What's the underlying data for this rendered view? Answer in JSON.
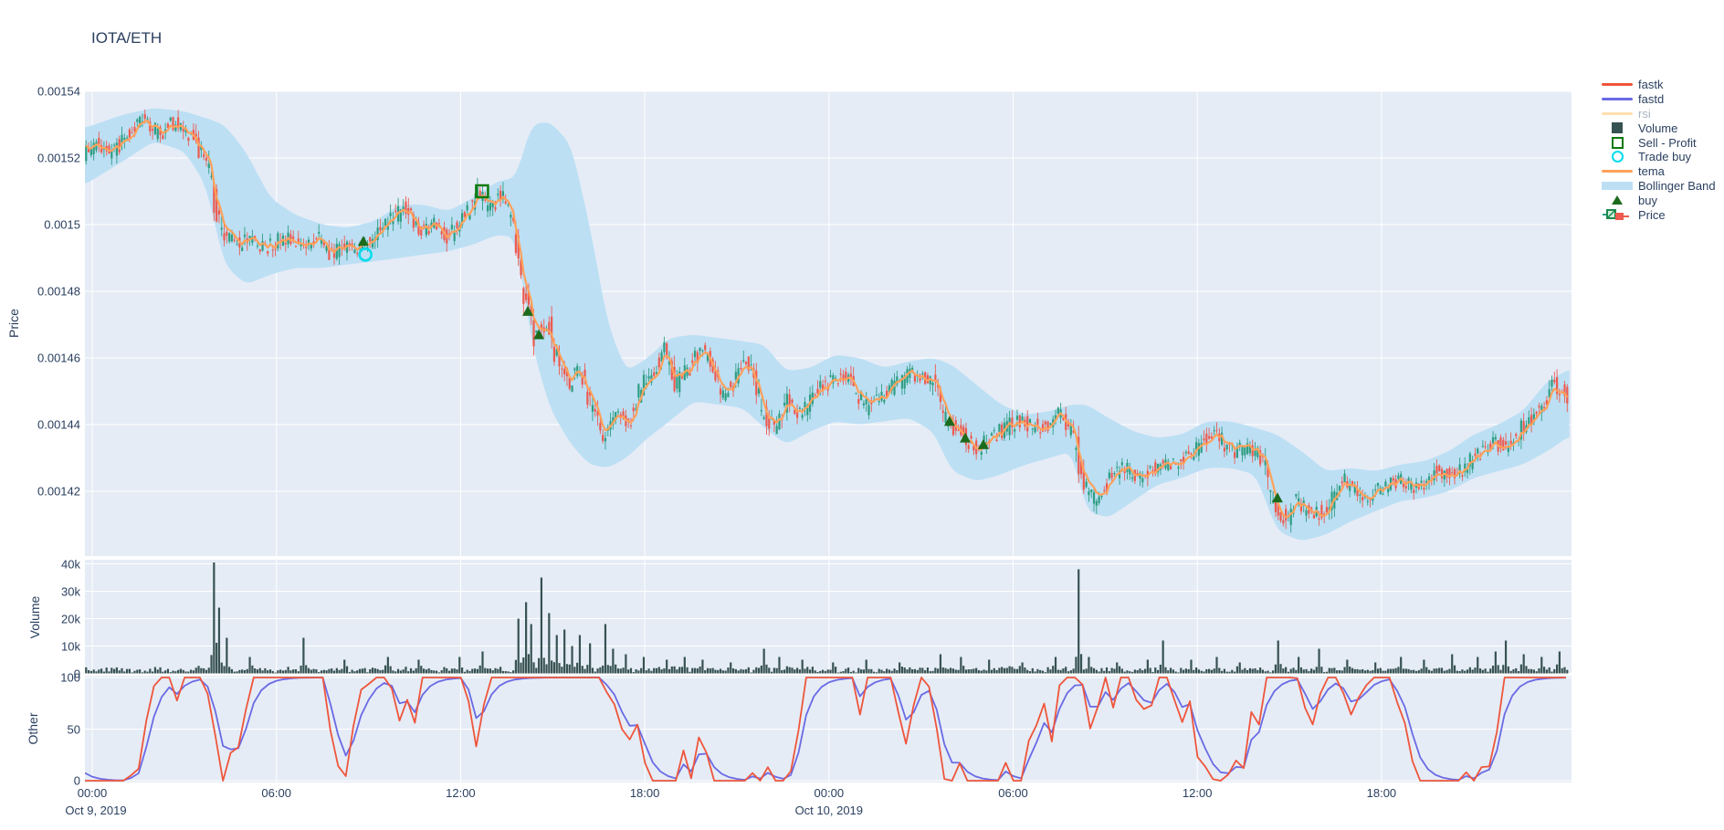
{
  "title": "IOTA/ETH",
  "legend": {
    "items": [
      {
        "id": "fastk",
        "label": "fastk",
        "swatch": "line",
        "color": "#EF553B",
        "muted": false
      },
      {
        "id": "fastd",
        "label": "fastd",
        "swatch": "line",
        "color": "#6A6AE4",
        "muted": false
      },
      {
        "id": "rsi",
        "label": "rsi",
        "swatch": "line",
        "color": "#FFDFB0",
        "muted": true
      },
      {
        "id": "volume",
        "label": "Volume",
        "swatch": "square",
        "color": "#375252",
        "muted": false
      },
      {
        "id": "sell-profit",
        "label": "Sell - Profit",
        "swatch": "square-open",
        "color": "#0B7A0B",
        "muted": false
      },
      {
        "id": "trade-buy",
        "label": "Trade buy",
        "swatch": "circle-open",
        "color": "#00DCEC",
        "muted": false
      },
      {
        "id": "tema",
        "label": "tema",
        "swatch": "line",
        "color": "#FFA15A",
        "muted": false
      },
      {
        "id": "bollinger",
        "label": "Bollinger Band",
        "swatch": "band",
        "color": "#BCDFF4",
        "muted": false
      },
      {
        "id": "buy",
        "label": "buy",
        "swatch": "triangle",
        "color": "#1C6B1C",
        "muted": false
      },
      {
        "id": "price",
        "label": "Price",
        "swatch": "candle",
        "color": "#2F9E82",
        "muted": false
      }
    ]
  },
  "axes": {
    "price": {
      "title": "Price",
      "ticks": [
        {
          "label": "0.00154",
          "value": 0.00154
        },
        {
          "label": "0.00152",
          "value": 0.00152
        },
        {
          "label": "0.0015",
          "value": 0.0015
        },
        {
          "label": "0.00148",
          "value": 0.00148
        },
        {
          "label": "0.00146",
          "value": 0.00146
        },
        {
          "label": "0.00144",
          "value": 0.00144
        },
        {
          "label": "0.00142",
          "value": 0.00142
        }
      ]
    },
    "volume": {
      "title": "Volume",
      "ticks": [
        {
          "label": "40k",
          "value": 40
        },
        {
          "label": "30k",
          "value": 30
        },
        {
          "label": "20k",
          "value": 20
        },
        {
          "label": "10k",
          "value": 10
        },
        {
          "label": "0",
          "value": 0
        }
      ]
    },
    "other": {
      "title": "Other",
      "ticks": [
        {
          "label": "100",
          "value": 100
        },
        {
          "label": "50",
          "value": 50
        },
        {
          "label": "0",
          "value": 0
        }
      ]
    },
    "x": {
      "ticks": [
        {
          "label": "00:00",
          "hour": 0
        },
        {
          "label": "06:00",
          "hour": 6
        },
        {
          "label": "12:00",
          "hour": 12
        },
        {
          "label": "18:00",
          "hour": 18
        },
        {
          "label": "00:00",
          "hour": 24
        },
        {
          "label": "06:00",
          "hour": 30
        },
        {
          "label": "12:00",
          "hour": 36
        },
        {
          "label": "18:00",
          "hour": 42
        }
      ],
      "dates": [
        {
          "label": "Oct 9, 2019",
          "hour": 0
        },
        {
          "label": "Oct 10, 2019",
          "hour": 24
        }
      ]
    }
  },
  "chart_data": {
    "type": "candlestick",
    "title": "IOTA/ETH",
    "x_range_hours": [
      -0.24,
      48.19
    ],
    "panels": [
      {
        "name": "price",
        "ylabel": "Price",
        "ylim": [
          0.0014005,
          0.00154
        ],
        "grid": true
      },
      {
        "name": "volume",
        "ylabel": "Volume",
        "ylim": [
          0,
          41500
        ],
        "grid": true
      },
      {
        "name": "other",
        "ylabel": "Other",
        "ylim": [
          0,
          100
        ],
        "grid": true,
        "series": [
          "fastk",
          "fastd"
        ]
      }
    ],
    "legend_position": "right",
    "hidden_series": [
      "rsi"
    ],
    "price_anchors": [
      [
        -0.24,
        0.001521
      ],
      [
        0.2,
        0.001524
      ],
      [
        0.7,
        0.001521
      ],
      [
        1.2,
        0.001527
      ],
      [
        1.8,
        0.001532
      ],
      [
        2.2,
        0.001527
      ],
      [
        2.8,
        0.001531
      ],
      [
        3.3,
        0.001526
      ],
      [
        3.8,
        0.001519
      ],
      [
        4.1,
        0.001505
      ],
      [
        4.4,
        0.001496
      ],
      [
        4.8,
        0.001494
      ],
      [
        5.2,
        0.001497
      ],
      [
        5.7,
        0.001493
      ],
      [
        6.3,
        0.001496
      ],
      [
        6.9,
        0.001494
      ],
      [
        7.4,
        0.001496
      ],
      [
        7.9,
        0.001491
      ],
      [
        8.4,
        0.001494
      ],
      [
        8.9,
        0.001493
      ],
      [
        9.4,
        0.001497
      ],
      [
        9.9,
        0.001502
      ],
      [
        10.3,
        0.001505
      ],
      [
        10.7,
        0.001497
      ],
      [
        11.2,
        0.0015
      ],
      [
        11.7,
        0.001496
      ],
      [
        12.2,
        0.001503
      ],
      [
        12.7,
        0.00151
      ],
      [
        13.0,
        0.001505
      ],
      [
        13.4,
        0.001509
      ],
      [
        13.8,
        0.001501
      ],
      [
        14.1,
        0.001482
      ],
      [
        14.5,
        0.001466
      ],
      [
        14.9,
        0.001471
      ],
      [
        15.2,
        0.00146
      ],
      [
        15.6,
        0.001452
      ],
      [
        15.9,
        0.001457
      ],
      [
        16.3,
        0.001447
      ],
      [
        16.7,
        0.001437
      ],
      [
        17.1,
        0.001444
      ],
      [
        17.6,
        0.001441
      ],
      [
        18.0,
        0.001452
      ],
      [
        18.4,
        0.001456
      ],
      [
        18.7,
        0.001463
      ],
      [
        19.1,
        0.001452
      ],
      [
        19.6,
        0.001458
      ],
      [
        20.0,
        0.001463
      ],
      [
        20.6,
        0.001448
      ],
      [
        21.0,
        0.001453
      ],
      [
        21.4,
        0.001461
      ],
      [
        21.9,
        0.001444
      ],
      [
        22.3,
        0.001439
      ],
      [
        22.7,
        0.001447
      ],
      [
        23.1,
        0.001443
      ],
      [
        23.6,
        0.001449
      ],
      [
        24.1,
        0.001453
      ],
      [
        24.7,
        0.001455
      ],
      [
        25.3,
        0.001445
      ],
      [
        26.0,
        0.00145
      ],
      [
        26.7,
        0.001455
      ],
      [
        27.4,
        0.001454
      ],
      [
        27.9,
        0.001441
      ],
      [
        28.4,
        0.001437
      ],
      [
        28.9,
        0.001433
      ],
      [
        29.5,
        0.001437
      ],
      [
        30.2,
        0.001441
      ],
      [
        31.0,
        0.001439
      ],
      [
        31.6,
        0.001443
      ],
      [
        32.0,
        0.001438
      ],
      [
        32.4,
        0.001421
      ],
      [
        32.8,
        0.001417
      ],
      [
        33.2,
        0.001423
      ],
      [
        33.7,
        0.001427
      ],
      [
        34.2,
        0.001424
      ],
      [
        34.8,
        0.001428
      ],
      [
        35.4,
        0.001429
      ],
      [
        36.0,
        0.001432
      ],
      [
        36.6,
        0.001438
      ],
      [
        37.2,
        0.001432
      ],
      [
        37.8,
        0.001433
      ],
      [
        38.2,
        0.00143
      ],
      [
        38.6,
        0.001416
      ],
      [
        39.0,
        0.001411
      ],
      [
        39.3,
        0.001419
      ],
      [
        39.7,
        0.001413
      ],
      [
        40.2,
        0.001414
      ],
      [
        40.9,
        0.001423
      ],
      [
        41.5,
        0.001418
      ],
      [
        42.1,
        0.001421
      ],
      [
        42.7,
        0.001423
      ],
      [
        43.3,
        0.001421
      ],
      [
        43.9,
        0.001426
      ],
      [
        44.5,
        0.001425
      ],
      [
        45.1,
        0.00143
      ],
      [
        45.7,
        0.001435
      ],
      [
        46.2,
        0.001432
      ],
      [
        46.7,
        0.00144
      ],
      [
        47.2,
        0.001445
      ],
      [
        47.7,
        0.001452
      ],
      [
        48.0,
        0.00145
      ],
      [
        48.19,
        0.001446
      ]
    ],
    "bollinger_anchors": [
      [
        -0.24,
        0.001529,
        0.001512
      ],
      [
        1.0,
        0.001533,
        0.001519
      ],
      [
        2.0,
        0.001535,
        0.001525
      ],
      [
        3.0,
        0.001534,
        0.001522
      ],
      [
        3.7,
        0.001532,
        0.001512
      ],
      [
        4.3,
        0.00153,
        0.001488
      ],
      [
        5.0,
        0.001522,
        0.001482
      ],
      [
        5.8,
        0.001508,
        0.001485
      ],
      [
        6.6,
        0.001503,
        0.001487
      ],
      [
        7.5,
        0.0015,
        0.001487
      ],
      [
        8.3,
        0.001499,
        0.001488
      ],
      [
        9.2,
        0.001501,
        0.001489
      ],
      [
        10.0,
        0.001506,
        0.00149
      ],
      [
        10.8,
        0.001506,
        0.001491
      ],
      [
        11.6,
        0.001504,
        0.001492
      ],
      [
        12.4,
        0.001508,
        0.001494
      ],
      [
        13.2,
        0.001513,
        0.001497
      ],
      [
        13.8,
        0.001514,
        0.001496
      ],
      [
        14.3,
        0.00153,
        0.001465
      ],
      [
        14.9,
        0.001531,
        0.001445
      ],
      [
        15.6,
        0.001524,
        0.001434
      ],
      [
        16.2,
        0.0015,
        0.001428
      ],
      [
        16.8,
        0.00147,
        0.001427
      ],
      [
        17.4,
        0.001456,
        0.00143
      ],
      [
        18.1,
        0.00146,
        0.001436
      ],
      [
        18.8,
        0.001466,
        0.001441
      ],
      [
        19.6,
        0.001467,
        0.001447
      ],
      [
        20.4,
        0.001466,
        0.001446
      ],
      [
        21.2,
        0.001465,
        0.001445
      ],
      [
        21.9,
        0.001464,
        0.001439
      ],
      [
        22.6,
        0.001456,
        0.001434
      ],
      [
        23.4,
        0.001457,
        0.001438
      ],
      [
        24.2,
        0.001461,
        0.001441
      ],
      [
        25.0,
        0.00146,
        0.00144
      ],
      [
        25.8,
        0.001457,
        0.001441
      ],
      [
        26.6,
        0.001459,
        0.001442
      ],
      [
        27.4,
        0.00146,
        0.001438
      ],
      [
        28.0,
        0.001458,
        0.001426
      ],
      [
        28.8,
        0.001452,
        0.001423
      ],
      [
        29.6,
        0.001446,
        0.001425
      ],
      [
        30.4,
        0.001443,
        0.001428
      ],
      [
        31.2,
        0.001444,
        0.00143
      ],
      [
        31.9,
        0.001446,
        0.001432
      ],
      [
        32.4,
        0.001446,
        0.001414
      ],
      [
        33.1,
        0.001442,
        0.001412
      ],
      [
        33.9,
        0.001438,
        0.001417
      ],
      [
        34.7,
        0.001436,
        0.001422
      ],
      [
        35.5,
        0.001437,
        0.001424
      ],
      [
        36.3,
        0.001441,
        0.001427
      ],
      [
        37.1,
        0.001441,
        0.001427
      ],
      [
        37.9,
        0.001439,
        0.001425
      ],
      [
        38.6,
        0.001437,
        0.001408
      ],
      [
        39.4,
        0.001432,
        0.001405
      ],
      [
        40.2,
        0.001426,
        0.001407
      ],
      [
        41.0,
        0.001427,
        0.001411
      ],
      [
        41.8,
        0.001426,
        0.001414
      ],
      [
        42.6,
        0.001428,
        0.001417
      ],
      [
        43.4,
        0.001429,
        0.001418
      ],
      [
        44.2,
        0.001432,
        0.00142
      ],
      [
        45.0,
        0.001437,
        0.001424
      ],
      [
        45.8,
        0.00144,
        0.001426
      ],
      [
        46.6,
        0.001444,
        0.001428
      ],
      [
        47.4,
        0.001453,
        0.001432
      ],
      [
        48.19,
        0.001457,
        0.001437
      ]
    ],
    "volume_spikes_k": [
      [
        3.95,
        40.5
      ],
      [
        4.15,
        24
      ],
      [
        4.4,
        13
      ],
      [
        5.1,
        6
      ],
      [
        6.9,
        13
      ],
      [
        8.2,
        5
      ],
      [
        9.6,
        6
      ],
      [
        10.6,
        5
      ],
      [
        12.0,
        6
      ],
      [
        12.7,
        8
      ],
      [
        13.9,
        20
      ],
      [
        14.1,
        26
      ],
      [
        14.3,
        18
      ],
      [
        14.6,
        35
      ],
      [
        14.85,
        22
      ],
      [
        15.1,
        14
      ],
      [
        15.35,
        16
      ],
      [
        15.6,
        10
      ],
      [
        15.9,
        14
      ],
      [
        16.2,
        11
      ],
      [
        16.7,
        18
      ],
      [
        17.0,
        9
      ],
      [
        17.4,
        7
      ],
      [
        18.0,
        6
      ],
      [
        18.7,
        5
      ],
      [
        19.3,
        6
      ],
      [
        19.9,
        5
      ],
      [
        20.8,
        4
      ],
      [
        21.9,
        9
      ],
      [
        22.4,
        6
      ],
      [
        23.1,
        5
      ],
      [
        24.1,
        4
      ],
      [
        25.2,
        5
      ],
      [
        26.3,
        4
      ],
      [
        27.6,
        7
      ],
      [
        28.3,
        6
      ],
      [
        29.2,
        5
      ],
      [
        30.3,
        4
      ],
      [
        31.4,
        6
      ],
      [
        32.15,
        38
      ],
      [
        32.5,
        6
      ],
      [
        33.4,
        4
      ],
      [
        34.4,
        5
      ],
      [
        34.85,
        12
      ],
      [
        35.8,
        5
      ],
      [
        36.6,
        6
      ],
      [
        37.4,
        4
      ],
      [
        38.65,
        12
      ],
      [
        39.3,
        6
      ],
      [
        40.0,
        9
      ],
      [
        40.9,
        5
      ],
      [
        41.8,
        4
      ],
      [
        42.6,
        6
      ],
      [
        43.4,
        5
      ],
      [
        44.3,
        7
      ],
      [
        45.1,
        6
      ],
      [
        45.7,
        8
      ],
      [
        46.05,
        12
      ],
      [
        46.6,
        7
      ],
      [
        47.2,
        6
      ],
      [
        47.8,
        8
      ]
    ],
    "markers": {
      "sell_profit": [
        {
          "hour": 12.7,
          "price": 0.00151
        }
      ],
      "trade_buy": [
        {
          "hour": 8.9,
          "price": 0.001491
        }
      ],
      "buy": [
        {
          "hour": 8.83,
          "price": 0.001495
        },
        {
          "hour": 14.19,
          "price": 0.001474
        },
        {
          "hour": 14.55,
          "price": 0.001467
        },
        {
          "hour": 27.93,
          "price": 0.001441
        },
        {
          "hour": 28.44,
          "price": 0.001436
        },
        {
          "hour": 29.03,
          "price": 0.001434
        },
        {
          "hour": 38.61,
          "price": 0.001418
        }
      ]
    },
    "colors": {
      "panel_bg": "#E5ECF6",
      "grid": "#FFFFFF",
      "text": "#2A3F5F",
      "muted_text": "#A9B4C2",
      "candle_up": "#2F9E82",
      "candle_down": "#EE5A4F",
      "tema": "#FFA15A",
      "bollinger": "#BCDFF4",
      "volume_bar": "#375252",
      "fastk": "#EF553B",
      "fastd": "#6A6AE4",
      "rsi": "#FFDFB0",
      "buy": "#1C6B1C",
      "sell": "#0B7A0B",
      "trade_buy": "#00DCEC"
    }
  }
}
